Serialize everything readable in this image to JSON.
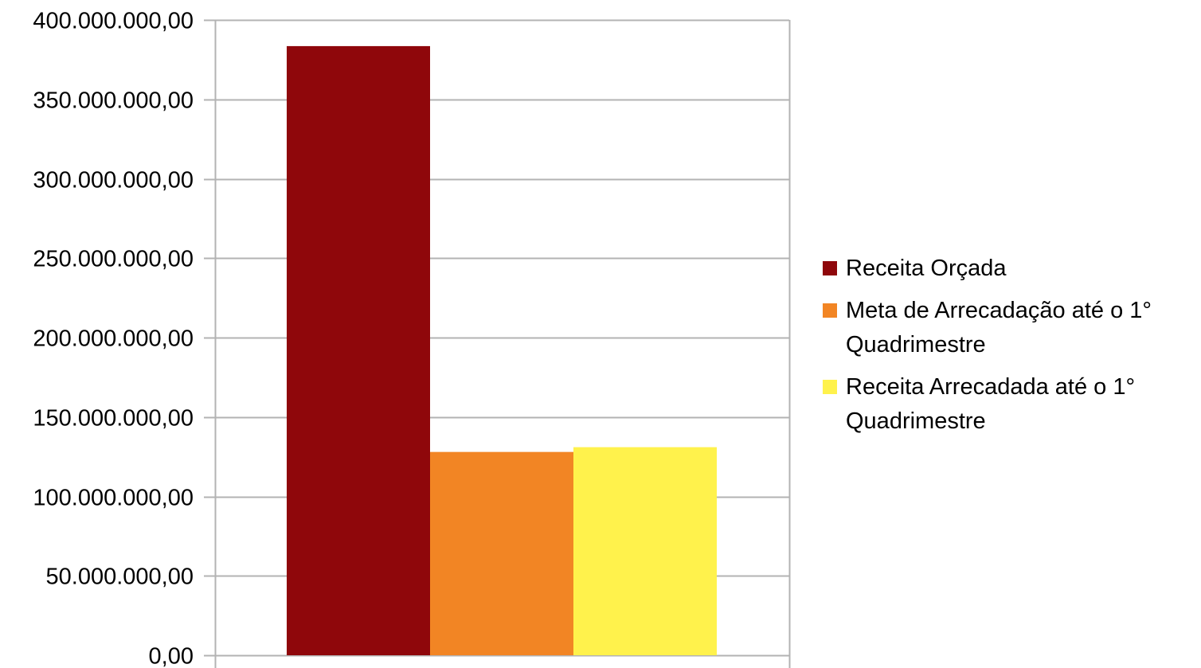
{
  "chart_data": {
    "type": "bar",
    "categories": [
      ""
    ],
    "series": [
      {
        "name": "Receita Orçada",
        "values": [
          383500000
        ],
        "color": "#8f070b"
      },
      {
        "name": "Meta de Arrecadação até o 1° Quadrimestre",
        "values": [
          128000000
        ],
        "color": "#f28524"
      },
      {
        "name": "Receita Arrecadada até o 1° Quadrimestre",
        "values": [
          131000000
        ],
        "color": "#fff24c"
      }
    ],
    "title": "",
    "xlabel": "",
    "ylabel": "",
    "ylim": [
      0,
      400000000
    ],
    "yticks": [
      0,
      50000000,
      100000000,
      150000000,
      200000000,
      250000000,
      300000000,
      350000000,
      400000000
    ],
    "ytick_labels": [
      "0,00",
      "50.000.000,00",
      "100.000.000,00",
      "150.000.000,00",
      "200.000.000,00",
      "250.000.000,00",
      "300.000.000,00",
      "350.000.000,00",
      "400.000.000,00"
    ],
    "grid": true,
    "legend_position": "right",
    "colors": {
      "grid": "#b3b3b3",
      "axis": "#b3b3b3",
      "text": "#000000"
    }
  }
}
